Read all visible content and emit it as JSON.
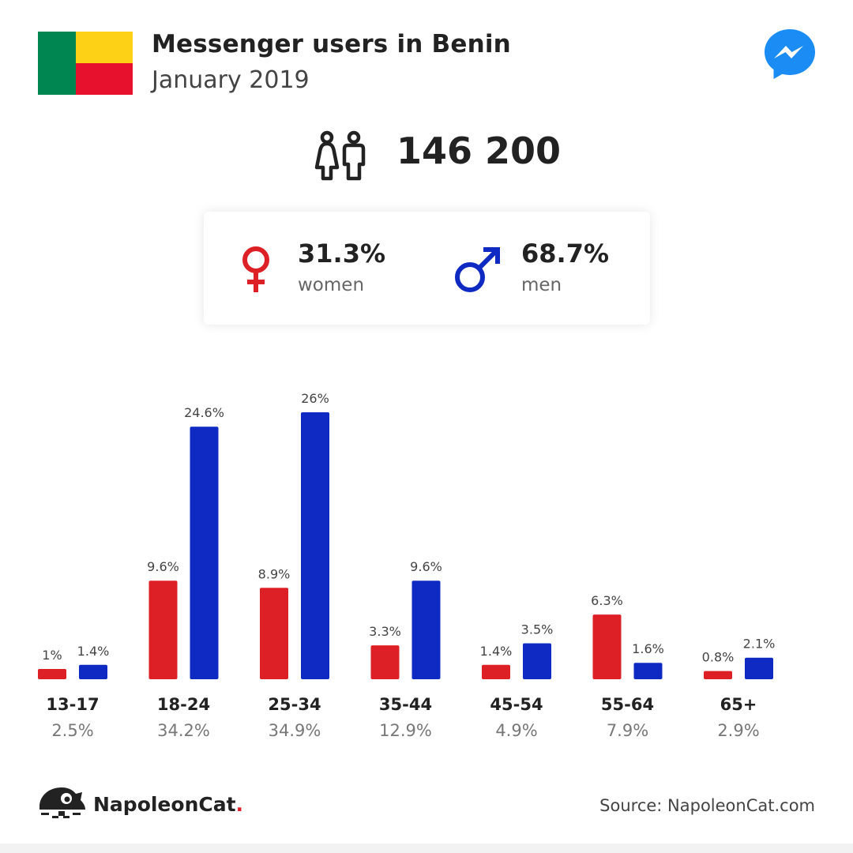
{
  "header": {
    "title": "Messenger users in Benin",
    "subtitle": "January 2019"
  },
  "flag_colors": {
    "green": "#008751",
    "yellow": "#FCD116",
    "red": "#E8112D"
  },
  "total_users": "146 200",
  "gender": {
    "women_pct": "31.3%",
    "women_label": "women",
    "men_pct": "68.7%",
    "men_label": "men"
  },
  "colors": {
    "women": "#dd1f26",
    "men": "#0f2ac2",
    "messenger": "#1c8cf5"
  },
  "chart_data": {
    "type": "bar",
    "categories": [
      "13-17",
      "18-24",
      "25-34",
      "35-44",
      "45-54",
      "55-64",
      "65+"
    ],
    "category_totals": [
      "2.5%",
      "34.2%",
      "34.9%",
      "12.9%",
      "4.9%",
      "7.9%",
      "2.9%"
    ],
    "series": [
      {
        "key": "women",
        "values": [
          1,
          9.6,
          8.9,
          3.3,
          1.4,
          6.3,
          0.8
        ],
        "labels": [
          "1%",
          "9.6%",
          "8.9%",
          "3.3%",
          "1.4%",
          "6.3%",
          "0.8%"
        ]
      },
      {
        "key": "men",
        "values": [
          1.4,
          24.6,
          26,
          9.6,
          3.5,
          1.6,
          2.1
        ],
        "labels": [
          "1.4%",
          "24.6%",
          "26%",
          "9.6%",
          "3.5%",
          "1.6%",
          "2.1%"
        ]
      }
    ]
  },
  "footer": {
    "brand_name": "NapoleonCat",
    "brand_dot": ".",
    "source": "Source: NapoleonCat.com"
  }
}
